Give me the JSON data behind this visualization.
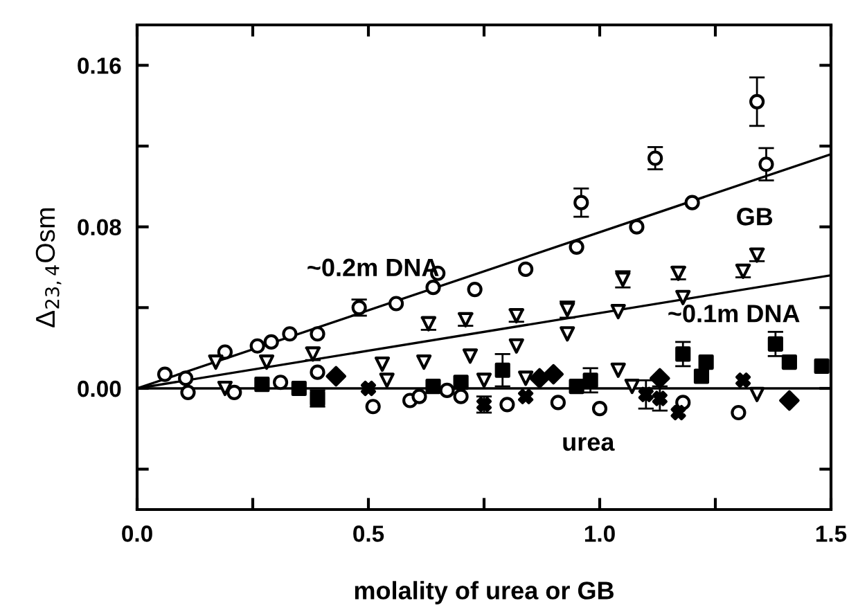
{
  "chart_data": {
    "type": "scatter",
    "xlabel": "molality of urea or GB",
    "ylabel": "Δ$_{23,4}$Osm",
    "xlim": [
      0,
      1.5
    ],
    "ylim": [
      -0.06,
      0.18
    ],
    "xticks": [
      {
        "value": 0,
        "label": "0.0"
      },
      {
        "value": 0.25,
        "label": null
      },
      {
        "value": 0.5,
        "label": "0.5"
      },
      {
        "value": 0.75,
        "label": null
      },
      {
        "value": 1.0,
        "label": "1.0"
      },
      {
        "value": 1.25,
        "label": null
      },
      {
        "value": 1.5,
        "label": "1.5"
      }
    ],
    "yticks": [
      {
        "value": -0.04,
        "label": null
      },
      {
        "value": 0,
        "label": "0.00"
      },
      {
        "value": 0.04,
        "label": null
      },
      {
        "value": 0.08,
        "label": "0.08"
      },
      {
        "value": 0.12,
        "label": null
      },
      {
        "value": 0.16,
        "label": "0.16"
      }
    ],
    "grid": false,
    "legend": false,
    "ref_lines": [
      {
        "axis": "y",
        "value": 0,
        "label": null,
        "color": "#000000"
      }
    ],
    "annotations": [
      "~0.2m DNA",
      "~0.1m DNA",
      "GB",
      "urea"
    ],
    "series": [
      {
        "type": "line",
        "color": "#000000",
        "marker": "none",
        "x": [
          0,
          1.5
        ],
        "values": [
          0,
          0.116
        ]
      },
      {
        "type": "line",
        "color": "#000000",
        "marker": "none",
        "x": [
          0,
          1.5
        ],
        "values": [
          0,
          0.056
        ]
      },
      {
        "color": "#000000",
        "marker": "circle",
        "x": [
          0.06,
          0.105,
          0.19,
          0.26,
          0.29,
          0.33,
          0.39,
          0.48,
          0.56,
          0.64,
          0.65,
          0.73,
          0.84,
          0.95,
          0.96,
          1.08,
          1.12,
          1.2,
          1.34,
          1.36
        ],
        "values": [
          0.007,
          0.005,
          0.018,
          0.021,
          0.023,
          0.027,
          0.027,
          0.04,
          0.042,
          0.05,
          0.057,
          0.049,
          0.059,
          0.07,
          0.092,
          0.08,
          0.114,
          0.092,
          0.142,
          0.111
        ],
        "errors": [
          null,
          null,
          null,
          null,
          null,
          null,
          null,
          0.004,
          null,
          null,
          null,
          null,
          null,
          null,
          0.007,
          null,
          0.0055,
          null,
          0.012,
          0.008
        ]
      },
      {
        "color": "#000000",
        "marker": "triangle",
        "x": [
          0.17,
          0.28,
          0.38,
          0.53,
          0.62,
          0.63,
          0.71,
          0.72,
          0.82,
          0.82,
          0.93,
          0.93,
          1.04,
          1.05,
          1.17,
          1.18,
          1.31,
          1.34
        ],
        "values": [
          0.013,
          0.013,
          0.017,
          0.012,
          0.013,
          0.032,
          0.034,
          0.016,
          0.036,
          0.021,
          0.039,
          0.027,
          0.038,
          0.054,
          0.057,
          0.045,
          0.058,
          0.066
        ],
        "errors": [
          null,
          null,
          0.003,
          null,
          null,
          0.003,
          0.003,
          null,
          0.003,
          null,
          0.004,
          null,
          null,
          0.004,
          0.003,
          null,
          0.003,
          0.003
        ]
      },
      {
        "color": "#000000",
        "marker": "circle",
        "x": [
          0.11,
          0.21,
          0.31,
          0.39,
          0.51,
          0.59,
          0.61,
          0.67,
          0.7,
          0.8,
          0.91,
          1.0,
          1.18,
          1.3
        ],
        "values": [
          -0.002,
          -0.002,
          0.003,
          0.008,
          -0.009,
          -0.006,
          -0.004,
          -0.001,
          -0.004,
          -0.008,
          -0.007,
          -0.01,
          -0.007,
          -0.012
        ]
      },
      {
        "color": "#000000",
        "marker": "square",
        "x": [
          0.27,
          0.35,
          0.64,
          0.7,
          0.95,
          1.22,
          1.48
        ],
        "values": [
          0.002,
          0.0,
          0.001,
          0.003,
          0.001,
          0.006,
          0.011
        ]
      },
      {
        "color": "#000000",
        "marker": "diamond",
        "x": [
          0.43,
          0.87,
          0.9,
          1.13,
          1.41
        ],
        "values": [
          0.006,
          0.005,
          0.007,
          0.005,
          -0.006
        ]
      },
      {
        "color": "#000000",
        "marker": "triangle",
        "x": [
          0.19,
          0.33,
          0.41,
          0.54,
          0.75,
          0.84,
          1.04,
          1.07,
          1.34
        ],
        "values": [
          0.0,
          null,
          null,
          0.004,
          0.004,
          0.005,
          0.009,
          0.001,
          -0.003
        ]
      },
      {
        "color": "#000000",
        "marker": "cross",
        "x": [
          0.5,
          0.75,
          0.84,
          1.1,
          1.13,
          1.17,
          1.31
        ],
        "values": [
          0.0,
          -0.008,
          -0.004,
          -0.003,
          -0.005,
          -0.012,
          0.004
        ],
        "errors": [
          null,
          0.004,
          null,
          0.007,
          0.006,
          null,
          null
        ]
      },
      {
        "color": "#000000",
        "marker": "square",
        "x": [
          0.39,
          0.79,
          0.98,
          1.18,
          1.23,
          1.38,
          1.41
        ],
        "values": [
          -0.005,
          0.009,
          0.004,
          0.017,
          0.013,
          0.022,
          0.013
        ],
        "errors": [
          0.004,
          0.008,
          0.006,
          0.006,
          null,
          0.006,
          null
        ]
      }
    ]
  }
}
